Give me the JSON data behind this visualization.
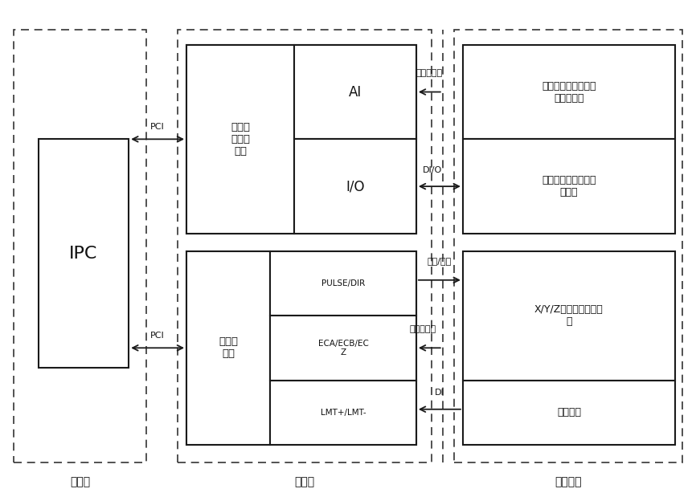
{
  "fig_width": 8.66,
  "fig_height": 6.19,
  "bg_color": "#ffffff",
  "ec_solid": "#1a1a1a",
  "ec_dashed": "#333333",
  "ipc_label": "IPC",
  "upper_label": "上位机",
  "lower_label": "下位机",
  "hw_label": "硬件外设",
  "multi_func_label": "多功能\n数据采\n集卡",
  "motion_ctrl_label": "运动控\n制卡",
  "ai_label": "AI",
  "io_label": "I/O",
  "pulse_dir_label": "PULSE/DIR",
  "eca_ecb_label": "ECA/ECB/EC\nZ",
  "lmt_label": "LMT+/LMT-",
  "analog_input_label": "模拟量输入",
  "dio_label": "DI/O",
  "pulse_dir_arrow_label": "脉冲/方向",
  "encoder_label": "编码器相位",
  "di_label": "DI",
  "hw_box1_label": "激光位移传感器、压\n力传感器等",
  "hw_box2_label": "开关、继电器、控制\n面板等",
  "hw_box3_label": "X/Y/Z轴伺服电机驱动\n器",
  "hw_box4_label": "行程开关",
  "pci_label": "PCI"
}
